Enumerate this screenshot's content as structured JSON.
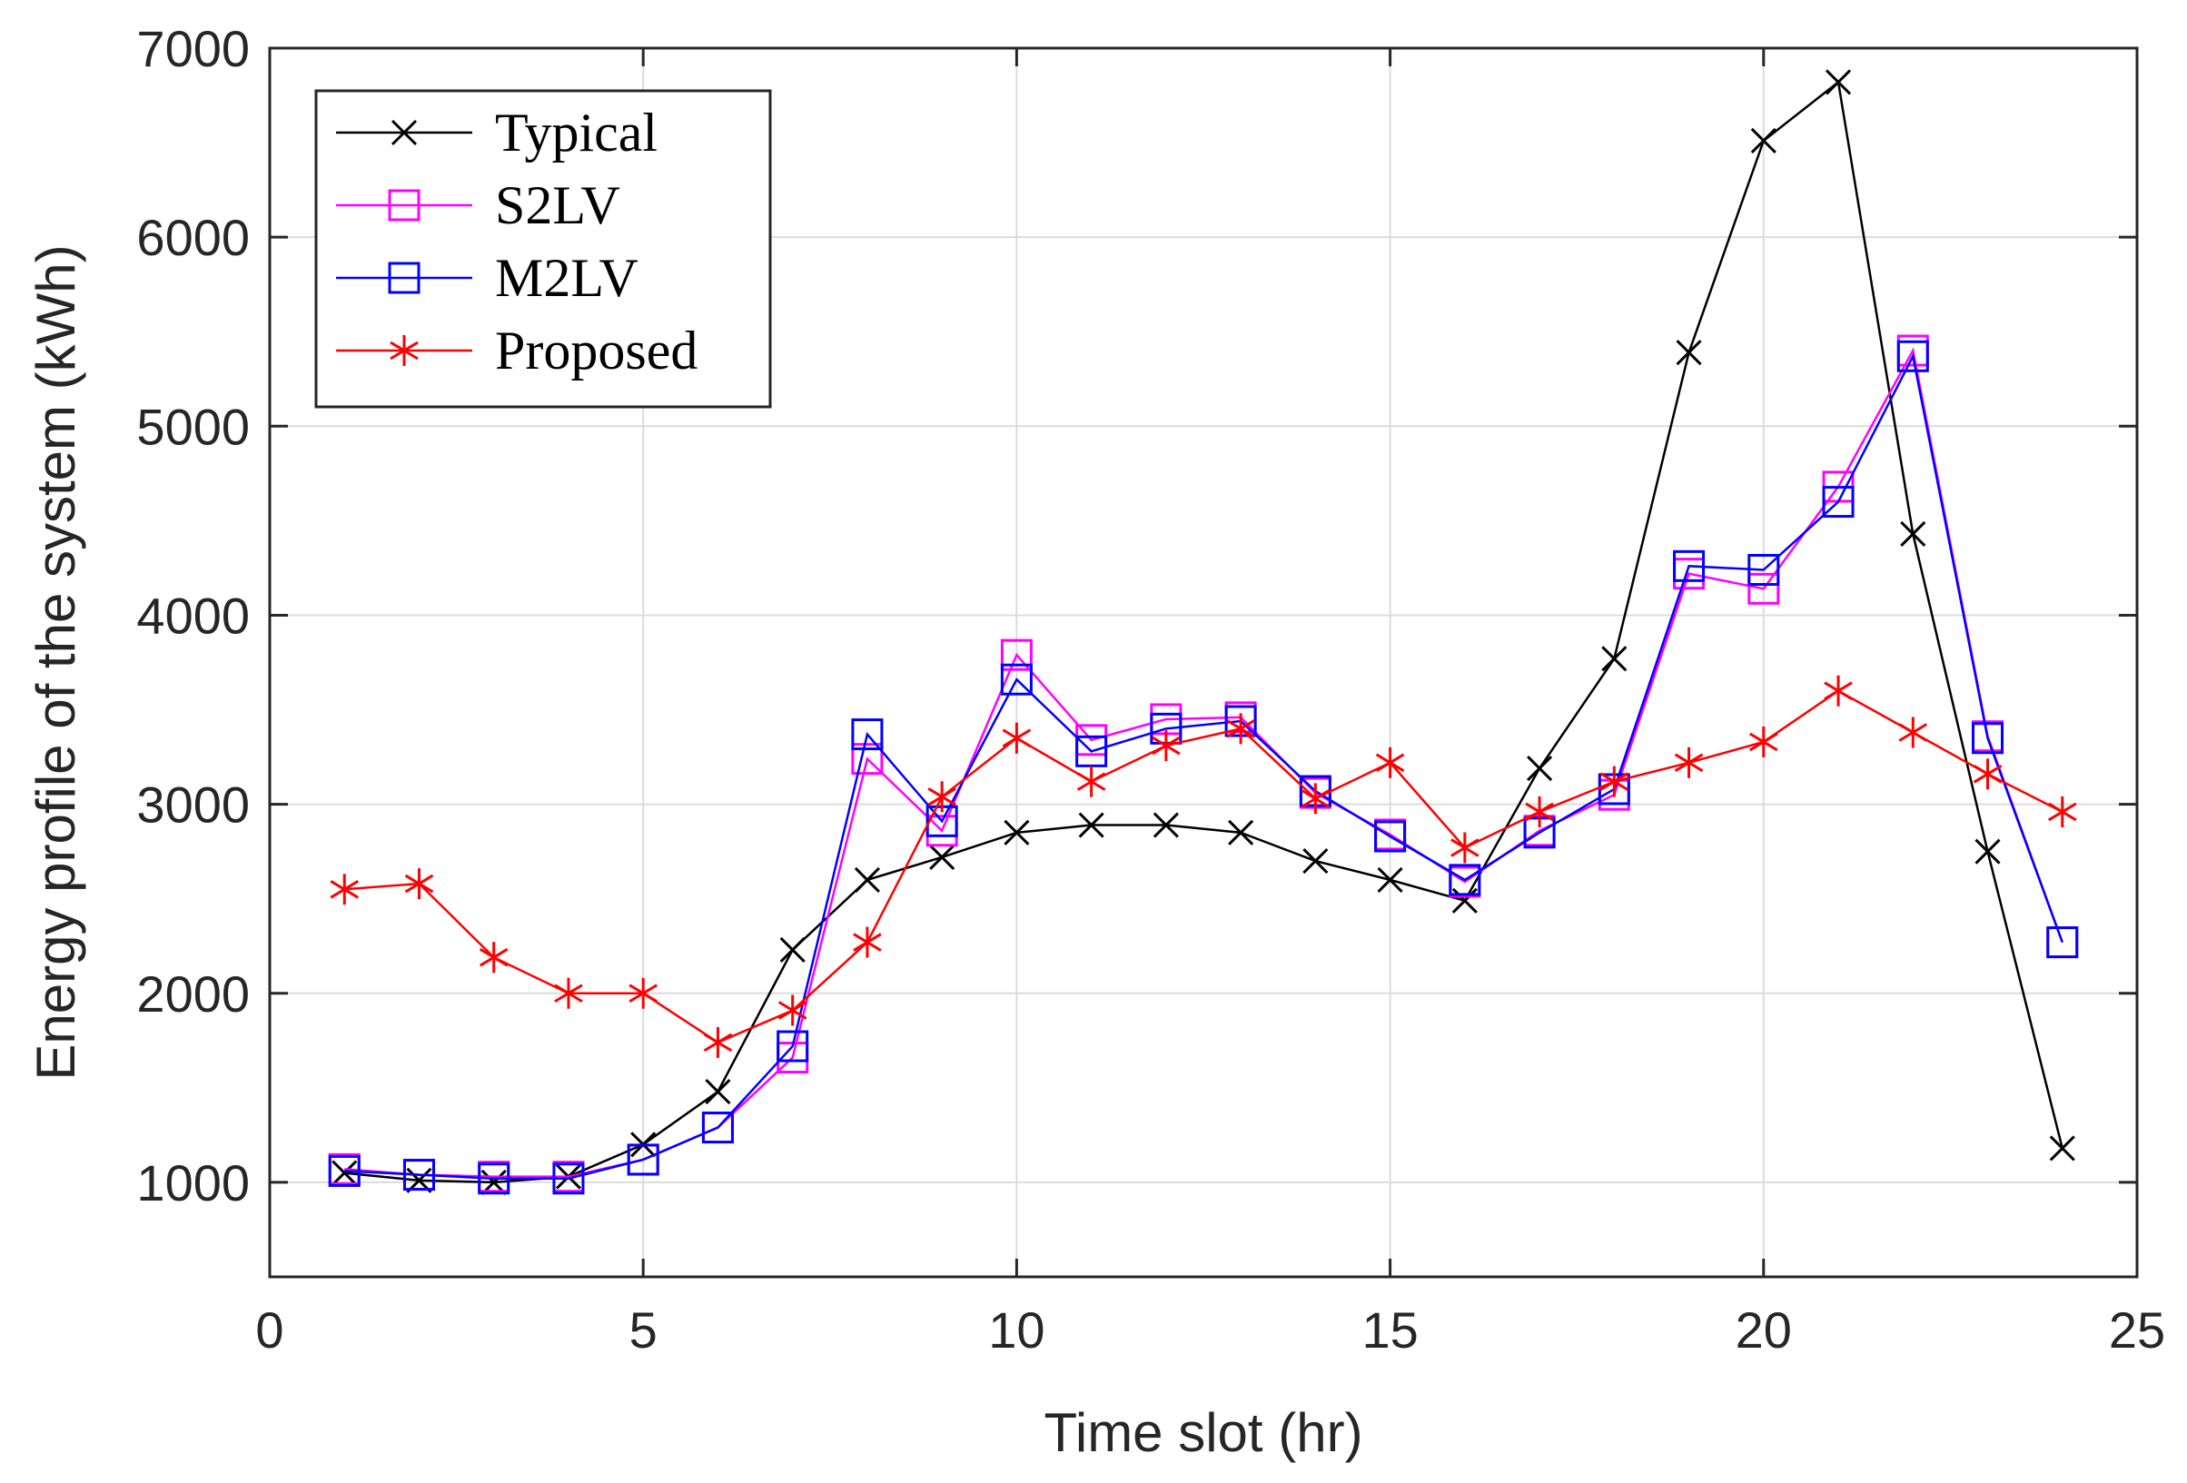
{
  "chart_data": {
    "type": "line",
    "xlabel": "Time slot (hr)",
    "ylabel": "Energy profile of the system (kWh)",
    "xlim": [
      0,
      25
    ],
    "ylim": [
      500,
      7000
    ],
    "xticks": [
      0,
      5,
      10,
      15,
      20,
      25
    ],
    "yticks": [
      1000,
      2000,
      3000,
      4000,
      5000,
      6000,
      7000
    ],
    "grid": true,
    "legend_position": "top-left",
    "x": [
      1,
      2,
      3,
      4,
      5,
      6,
      7,
      8,
      9,
      10,
      11,
      12,
      13,
      14,
      15,
      16,
      17,
      18,
      19,
      20,
      21,
      22,
      23,
      24
    ],
    "series": [
      {
        "name": "Typical",
        "color": "#000000",
        "marker": "x",
        "values": [
          1050,
          1010,
          1000,
          1030,
          1200,
          1480,
          2230,
          2600,
          2720,
          2850,
          2890,
          2890,
          2850,
          2700,
          2600,
          2490,
          3190,
          3770,
          5390,
          6510,
          6820,
          4430,
          2750,
          1180
        ]
      },
      {
        "name": "S2LV",
        "color": "#ff00ff",
        "marker": "square",
        "values": [
          1070,
          1040,
          1030,
          1030,
          1120,
          1290,
          1660,
          3240,
          2860,
          3790,
          3340,
          3450,
          3460,
          3060,
          2840,
          2590,
          2860,
          3050,
          4220,
          4140,
          4680,
          5400,
          3360,
          2270
        ]
      },
      {
        "name": "M2LV",
        "color": "#0000ff",
        "marker": "square",
        "values": [
          1060,
          1040,
          1020,
          1020,
          1120,
          1290,
          1720,
          3370,
          2910,
          3660,
          3280,
          3400,
          3440,
          3070,
          2830,
          2600,
          2850,
          3080,
          4260,
          4240,
          4600,
          5370,
          3350,
          2270
        ]
      },
      {
        "name": "Proposed",
        "color": "#ff0000",
        "marker": "asterisk",
        "values": [
          2550,
          2580,
          2190,
          2000,
          2000,
          1740,
          1910,
          2270,
          3040,
          3350,
          3120,
          3310,
          3400,
          3030,
          3220,
          2770,
          2960,
          3120,
          3220,
          3330,
          3600,
          3380,
          3160,
          2960
        ]
      }
    ]
  }
}
